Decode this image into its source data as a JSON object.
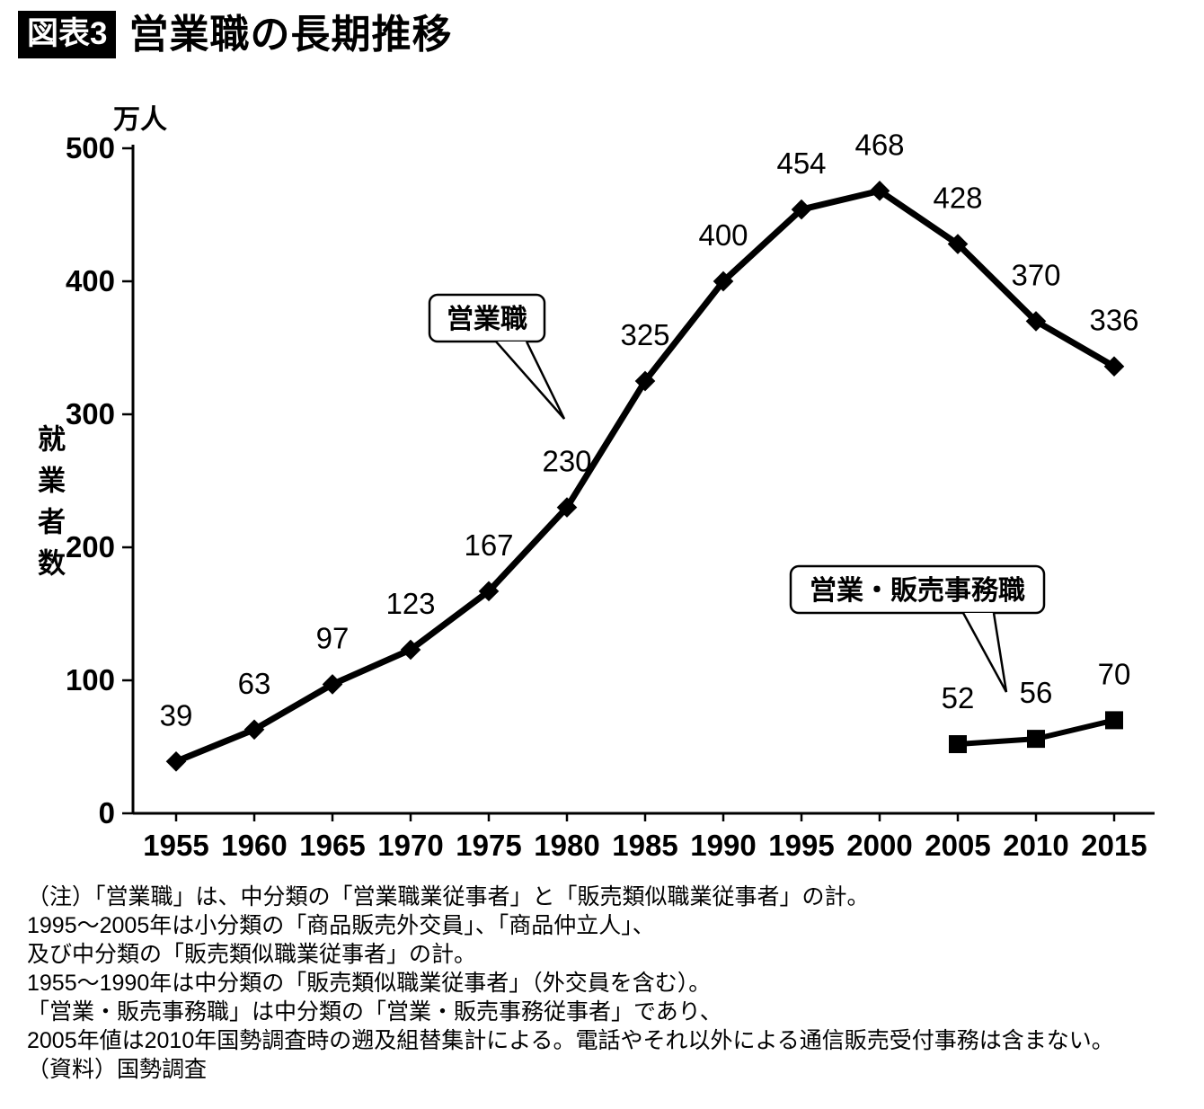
{
  "header": {
    "tag": "図表3",
    "title": "営業職の長期推移"
  },
  "chart_data": {
    "type": "line",
    "title": "営業職の長期推移",
    "unit_label": "万人",
    "ylabel": "就業者数",
    "xlabel": "",
    "ylim": [
      0,
      500
    ],
    "yticks": [
      0,
      100,
      200,
      300,
      400,
      500
    ],
    "grid": false,
    "legend_position": "none",
    "categories": [
      1955,
      1960,
      1965,
      1970,
      1975,
      1980,
      1985,
      1990,
      1995,
      2000,
      2005,
      2010,
      2015
    ],
    "series": [
      {
        "name": "営業職",
        "marker": "diamond",
        "x": [
          1955,
          1960,
          1965,
          1970,
          1975,
          1980,
          1985,
          1990,
          1995,
          2000,
          2005,
          2010,
          2015
        ],
        "values": [
          39,
          63,
          97,
          123,
          167,
          230,
          325,
          400,
          454,
          468,
          428,
          370,
          336
        ]
      },
      {
        "name": "営業・販売事務職",
        "marker": "square",
        "x": [
          2005,
          2010,
          2015
        ],
        "values": [
          52,
          56,
          70
        ]
      }
    ],
    "annotations": [
      {
        "label": "営業職"
      },
      {
        "label": "営業・販売事務職"
      }
    ]
  },
  "notes": [
    "（注）「営業職」は、中分類の「営業職業従事者」と「販売類似職業従事者」の計。",
    "1995〜2005年は小分類の「商品販売外交員」、「商品仲立人」、",
    "及び中分類の「販売類似職業従事者」の計。",
    "1955〜1990年は中分類の「販売類似職業従事者」（外交員を含む）。",
    "「営業・販売事務職」は中分類の「営業・販売事務従事者」であり、",
    "2005年値は2010年国勢調査時の遡及組替集計による。電話やそれ以外による通信販売受付事務は含まない。",
    "（資料）国勢調査"
  ]
}
